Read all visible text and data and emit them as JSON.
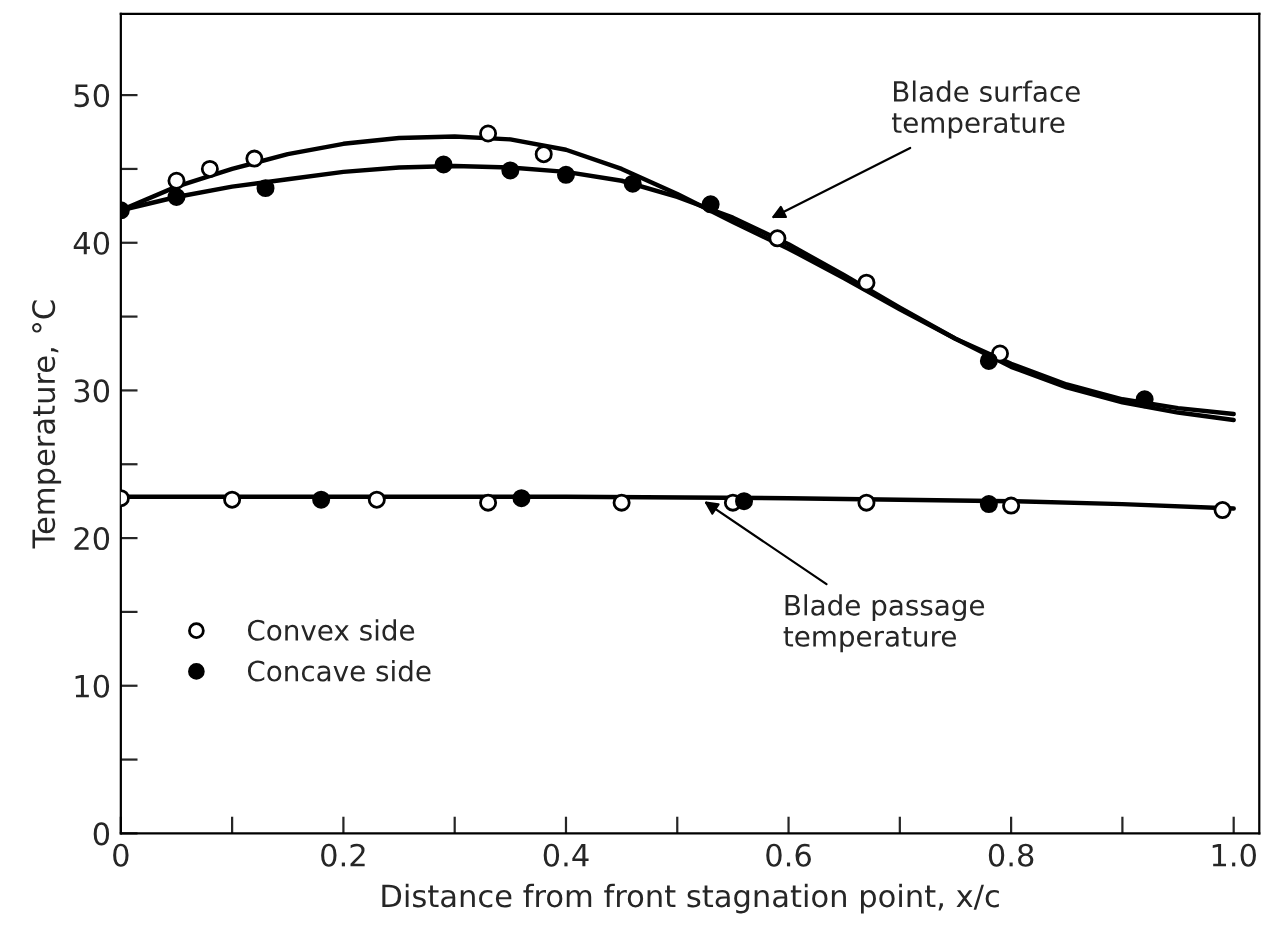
{
  "chart_data": {
    "type": "scatter",
    "xlabel": "Distance from front stagnation point, x/c",
    "ylabel": "Temperature, °C",
    "xlim": [
      0,
      1.023
    ],
    "ylim": [
      0,
      55.5
    ],
    "xticks": [
      0,
      {
        "value": 0.1,
        "label": null
      },
      0.2,
      {
        "value": 0.3,
        "label": null
      },
      0.4,
      {
        "value": 0.5,
        "label": null
      },
      0.6,
      {
        "value": 0.7,
        "label": null
      },
      0.8,
      {
        "value": 0.9,
        "label": null
      },
      {
        "value": 1.0,
        "label": "1.0"
      }
    ],
    "yticks": [
      0,
      {
        "value": 5,
        "label": null
      },
      10,
      {
        "value": 15,
        "label": null
      },
      20,
      {
        "value": 25,
        "label": null
      },
      30,
      {
        "value": 35,
        "label": null
      },
      40,
      {
        "value": 45,
        "label": null
      },
      50
    ],
    "grid": false,
    "legend": "left",
    "series": [
      {
        "name": "Convex side",
        "marker": "circle",
        "color": "#ffffff",
        "x": [
          0.05,
          0.08,
          0.12,
          0.33,
          0.38,
          0.59,
          0.67,
          0.79,
          0,
          0.1,
          0.23,
          0.33,
          0.45,
          0.55,
          0.67,
          0.8,
          0.99
        ],
        "values": [
          44.2,
          45.0,
          45.7,
          47.4,
          46.0,
          40.3,
          37.3,
          32.5,
          22.7,
          22.6,
          22.6,
          22.4,
          22.4,
          22.4,
          22.4,
          22.2,
          21.9
        ]
      },
      {
        "name": "Concave side",
        "marker": "circle",
        "color": "#000000",
        "x": [
          0,
          0.05,
          0.13,
          0.29,
          0.35,
          0.4,
          0.46,
          0.53,
          0.78,
          0.92,
          0.18,
          0.36,
          0.56,
          0.78
        ],
        "values": [
          42.2,
          43.1,
          43.7,
          45.3,
          44.9,
          44.6,
          44.0,
          42.6,
          32.0,
          29.4,
          22.6,
          22.7,
          22.5,
          22.3
        ]
      },
      {
        "type": "line",
        "color": "#000000",
        "x": [
          0,
          0.05,
          0.1,
          0.15,
          0.2,
          0.25,
          0.3,
          0.35,
          0.4,
          0.45,
          0.5,
          0.55,
          0.6,
          0.65,
          0.7,
          0.75,
          0.8,
          0.85,
          0.9,
          0.95,
          1.0
        ],
        "values": [
          42.2,
          43.8,
          45.0,
          46.0,
          46.7,
          47.1,
          47.2,
          47.0,
          46.3,
          45.0,
          43.3,
          41.4,
          39.6,
          37.6,
          35.5,
          33.5,
          31.8,
          30.4,
          29.4,
          28.8,
          28.4
        ]
      },
      {
        "type": "line",
        "color": "#000000",
        "x": [
          0,
          0.05,
          0.1,
          0.15,
          0.2,
          0.25,
          0.3,
          0.35,
          0.4,
          0.45,
          0.5,
          0.55,
          0.6,
          0.65,
          0.7,
          0.75,
          0.8,
          0.85,
          0.9,
          0.95,
          1.0
        ],
        "values": [
          42.2,
          43.1,
          43.8,
          44.3,
          44.8,
          45.1,
          45.2,
          45.1,
          44.8,
          44.2,
          43.1,
          41.7,
          39.9,
          37.8,
          35.6,
          33.5,
          31.6,
          30.2,
          29.2,
          28.5,
          28.0
        ]
      },
      {
        "type": "line",
        "color": "#000000",
        "x": [
          0,
          0.2,
          0.4,
          0.6,
          0.8,
          0.9,
          1.0
        ],
        "values": [
          22.8,
          22.8,
          22.8,
          22.7,
          22.5,
          22.3,
          22.0
        ]
      }
    ],
    "annotations": [
      {
        "text": "Blade surface\ntemperature",
        "x": 0.58,
        "y": 41.5
      },
      {
        "text": "Blade passage\ntemperature",
        "x": 0.52,
        "y": 22.7
      }
    ]
  }
}
